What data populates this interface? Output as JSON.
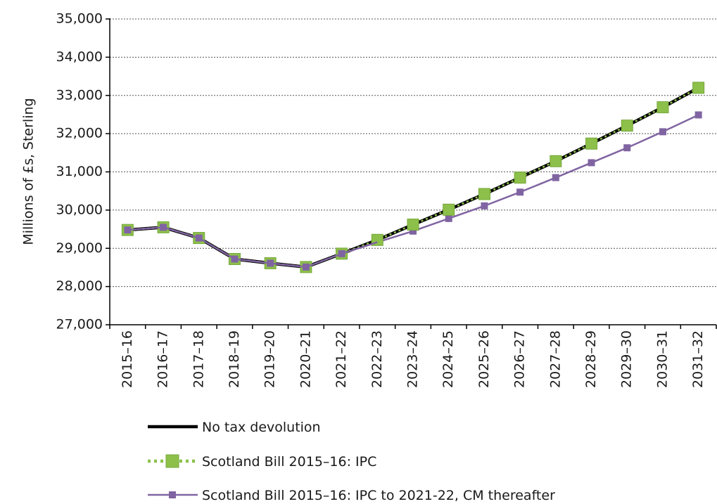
{
  "chart_data": {
    "type": "line",
    "title": "",
    "xlabel": "",
    "ylabel": "Millions of £s, Sterling",
    "ylim": [
      27000,
      35000
    ],
    "yticks": [
      27000,
      28000,
      29000,
      30000,
      31000,
      32000,
      33000,
      34000,
      35000
    ],
    "ytick_labels": [
      "27,000",
      "28,000",
      "29,000",
      "30,000",
      "31,000",
      "32,000",
      "33,000",
      "34,000",
      "35,000"
    ],
    "grid": "horizontal dotted",
    "legend_position": "bottom",
    "categories": [
      "2015–16",
      "2016–17",
      "2017–18",
      "2018–19",
      "2019–20",
      "2020–21",
      "2021–22",
      "2022–23",
      "2023–24",
      "2024–25",
      "2025–26",
      "2026–27",
      "2027–28",
      "2028–29",
      "2029–30",
      "2030–31",
      "2031–32"
    ],
    "series": [
      {
        "name": "No tax devolution",
        "color": "#000000",
        "style": "solid-thick",
        "marker": "none",
        "values": [
          29480,
          29550,
          29270,
          28720,
          28610,
          28510,
          28860,
          29220,
          29620,
          30010,
          30420,
          30850,
          31280,
          31740,
          32210,
          32690,
          33200
        ]
      },
      {
        "name": "Scotland Bill 2015–16: IPC",
        "color": "#8DC04A",
        "style": "dotted",
        "marker": "square",
        "values": [
          29480,
          29550,
          29270,
          28720,
          28610,
          28510,
          28860,
          29220,
          29620,
          30010,
          30420,
          30850,
          31280,
          31740,
          32210,
          32690,
          33200
        ]
      },
      {
        "name": "Scotland Bill 2015–16: IPC to 2021-22, CM thereafter",
        "color": "#8064A2",
        "style": "solid",
        "marker": "square-small",
        "values": [
          29480,
          29550,
          29270,
          28720,
          28610,
          28510,
          28860,
          29160,
          29450,
          29780,
          30110,
          30470,
          30850,
          31240,
          31630,
          32050,
          32490
        ]
      }
    ]
  }
}
